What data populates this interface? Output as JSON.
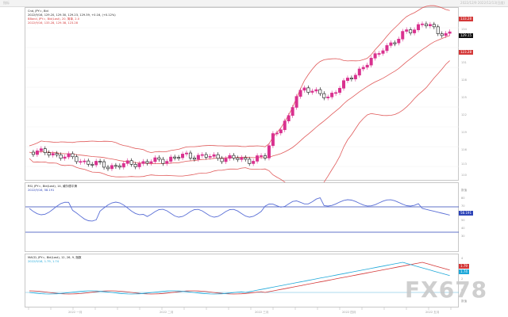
{
  "header": {
    "left": "指标",
    "right": "2022/12/9  2022/12/13(日度)"
  },
  "main_panel": {
    "title": "Cnd, JPY=, Bid",
    "quote": "2022/9/16, 129.20, 129.30, 129.23, 129.39, +0.16, (+0.12%)",
    "bband_title": "BBand, JPY=, Bid(Last), 20, 简单, 2.0",
    "bband_values": "2022/9/16, 133.28, 129.38, 123.28",
    "price_tags": [
      {
        "label": "133.28",
        "color": "#d43838"
      },
      {
        "label": "129.15",
        "color": "#111111"
      },
      {
        "label": "123.28",
        "color": "#d43838"
      }
    ],
    "y_ticks": [
      "134",
      "131",
      "128",
      "125",
      "122",
      "119",
      "116",
      "113",
      "110"
    ]
  },
  "rsi_panel": {
    "title": "RSI, JPY=, Bid(Last), 14, 威尔德平滑",
    "values": "2022/9/16, 58.191",
    "tags": [
      {
        "label": "58.191",
        "color": "#2d44b8"
      }
    ],
    "y_ticks": [
      "80",
      "70",
      "60",
      "50",
      "40",
      "30"
    ],
    "unit": "数值"
  },
  "macd_panel": {
    "title": "MACD, JPY=, Bid(Last), 12, 26, 9, 指数",
    "values": "2022/9/16, 1.79, 1.74",
    "tags": [
      {
        "label": "1.79",
        "color": "#d43838"
      },
      {
        "label": "1.74",
        "color": "#1fa8d9"
      }
    ],
    "y_ticks": [
      "4",
      "2",
      "0",
      "-2"
    ],
    "unit": "数值"
  },
  "x_axis": {
    "labels": [
      "2022 一月",
      "2022 二月",
      "2022 三月",
      "2022 四月",
      "2022 五月"
    ]
  },
  "watermark": "FX678",
  "colors": {
    "bull": "#d9318f",
    "bear": "#111111",
    "bband": "#e05a5a",
    "rsi": "#5a6fd6",
    "macd": "#d43838",
    "signal": "#1fa8d9"
  }
}
